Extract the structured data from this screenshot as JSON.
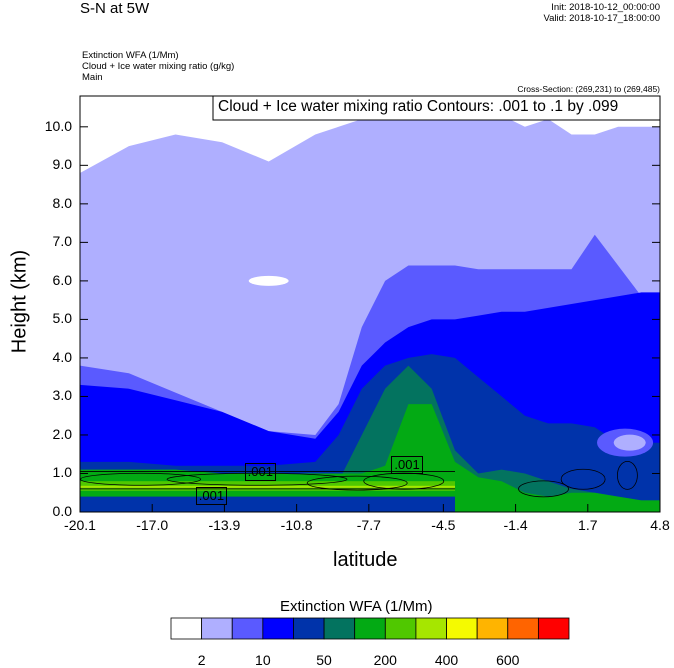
{
  "header": {
    "title": "S-N at 5W",
    "init": "Init: 2018-10-12_00:00:00",
    "valid": "Valid: 2018-10-17_18:00:00",
    "field1": "Extinction WFA   (1/Mm)",
    "field2": "Cloud + Ice water mixing ratio   (g/kg)",
    "field3": "Main",
    "cross_section": "Cross-Section: (269,231) to (269,485)"
  },
  "chart_data": {
    "type": "heatmap",
    "title": "Cloud + Ice water mixing ratio Contours: .001 to .1 by .099",
    "xlabel": "latitude",
    "ylabel": "Height (km)",
    "xlim": [
      -20.1,
      4.8
    ],
    "ylim": [
      0,
      10.8
    ],
    "xticks": [
      "-20.1",
      "-17.0",
      "-13.9",
      "-10.8",
      "-7.7",
      "-4.5",
      "-1.4",
      "1.7",
      "4.8"
    ],
    "xtick_values": [
      -20.1,
      -17.0,
      -13.9,
      -10.8,
      -7.7,
      -4.5,
      -1.4,
      1.7,
      4.8
    ],
    "yticks": [
      "0.0",
      "1.0",
      "2.0",
      "3.0",
      "4.0",
      "5.0",
      "6.0",
      "7.0",
      "8.0",
      "9.0",
      "10.0"
    ],
    "contour_labels": [
      ".001",
      ".001",
      ".001"
    ],
    "colorbar": {
      "title": "Extinction WFA  (1/Mm)",
      "colors": [
        "#FFFFFF",
        "#AFAFFF",
        "#5A5AFF",
        "#0000FF",
        "#0033AA",
        "#03735F",
        "#03AA14",
        "#50C800",
        "#A6E600",
        "#F5FA00",
        "#FFB400",
        "#FF6400",
        "#FF0000"
      ],
      "labels": [
        "2",
        "10",
        "50",
        "200",
        "400",
        "600"
      ],
      "label_boundaries": [
        1,
        3,
        5,
        7,
        9,
        11
      ]
    },
    "field_layers": {
      "latitude": [
        -20.1,
        -18,
        -16,
        -14,
        -12,
        -10,
        -9,
        -8,
        -7,
        -6,
        -5,
        -4,
        -3,
        -2,
        -1,
        0,
        1,
        2,
        3,
        4,
        4.8
      ],
      "layers": [
        {
          "color_index": 1,
          "top_km": [
            8.8,
            9.5,
            9.8,
            9.6,
            9.1,
            9.8,
            10.0,
            10.2,
            10.4,
            10.6,
            10.6,
            10.5,
            10.4,
            10.3,
            10.0,
            10.2,
            9.8,
            9.8,
            10.0,
            10.0,
            10.0
          ]
        },
        {
          "color_index": 2,
          "top_km": [
            3.8,
            3.6,
            3.1,
            2.6,
            2.1,
            2.0,
            2.8,
            4.8,
            6.0,
            6.4,
            6.4,
            6.4,
            6.3,
            6.3,
            6.3,
            6.3,
            6.3,
            7.2,
            6.4,
            5.6,
            5.0
          ]
        },
        {
          "color_index": 3,
          "top_km": [
            3.3,
            3.2,
            2.9,
            2.6,
            2.1,
            1.9,
            2.6,
            3.8,
            4.4,
            4.8,
            5.0,
            5.0,
            5.1,
            5.2,
            5.2,
            5.3,
            5.4,
            5.5,
            5.6,
            5.7,
            5.7
          ]
        },
        {
          "color_index": 4,
          "top_km": [
            1.3,
            1.3,
            1.2,
            1.2,
            1.2,
            1.3,
            2.0,
            3.2,
            3.8,
            4.0,
            4.1,
            4.0,
            3.5,
            3.0,
            2.5,
            2.3,
            2.3,
            2.2,
            1.8,
            1.8,
            1.8
          ]
        },
        {
          "color_index": 5,
          "top_km": [
            0.3,
            0.3,
            0.3,
            0.3,
            0.3,
            0.4,
            0.8,
            2.0,
            3.2,
            3.8,
            3.2,
            1.6,
            1.0,
            1.1,
            1.0,
            0.8,
            0.6,
            0.5,
            0.4,
            0.3,
            0.3
          ]
        },
        {
          "color_index": 6,
          "top_km": [
            1.1,
            1.1,
            1.1,
            1.0,
            1.0,
            1.0,
            1.0,
            1.0,
            1.2,
            2.8,
            2.8,
            1.3,
            0.9,
            0.8,
            0.5,
            0.4,
            0.5,
            0.5,
            0.4,
            0.3,
            0.3
          ]
        }
      ]
    }
  }
}
